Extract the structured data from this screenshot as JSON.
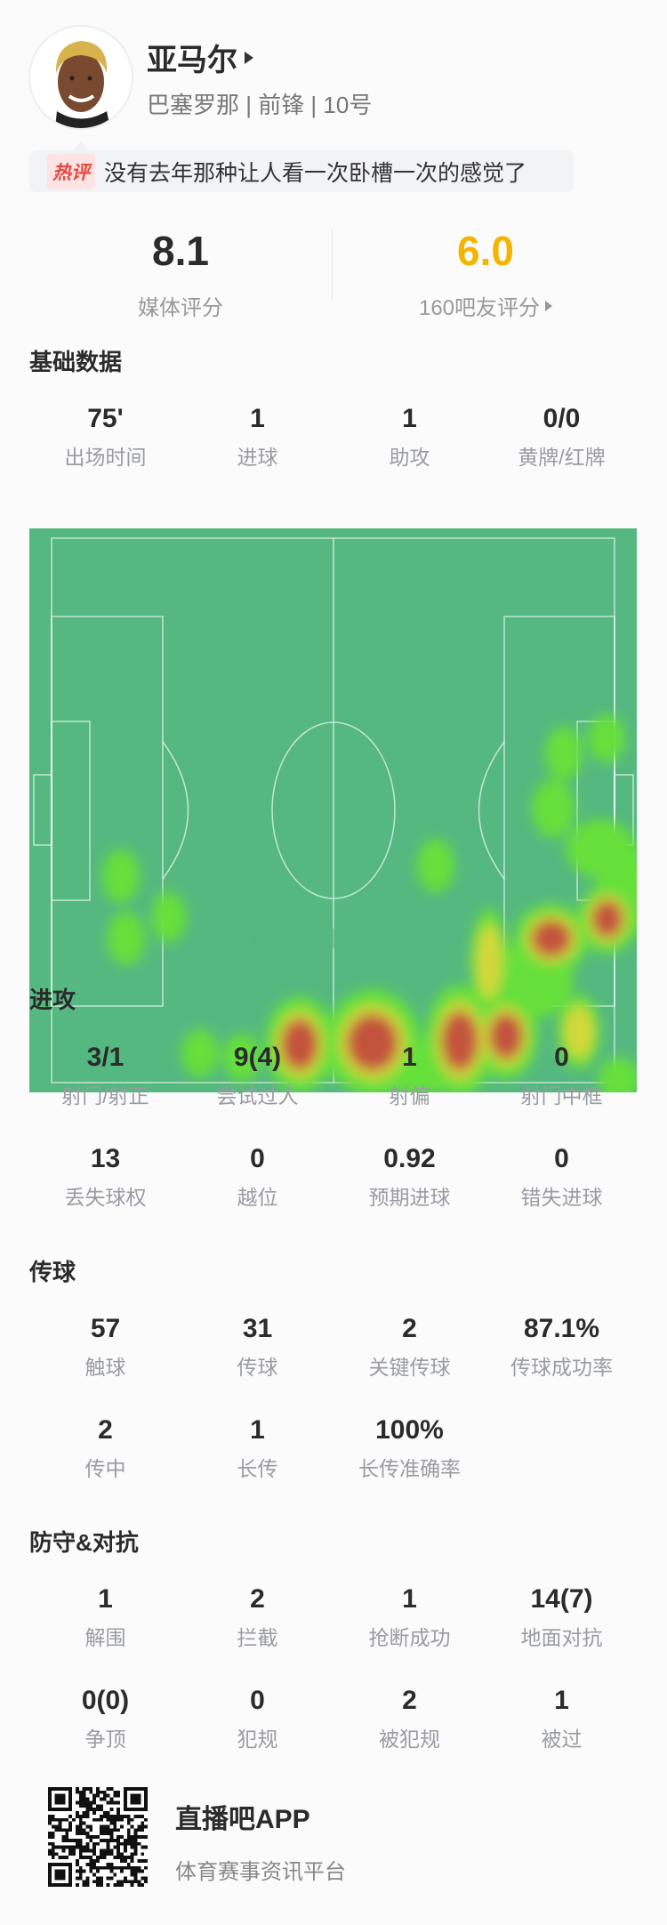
{
  "player": {
    "name": "亚马尔",
    "subtitle": "巴塞罗那 | 前锋 | 10号",
    "hot_comment": {
      "badge": "热评",
      "text": "没有去年那种让人看一次卧槽一次的感觉了"
    }
  },
  "ratings": {
    "media": {
      "value": "8.1",
      "label": "媒体评分"
    },
    "fans": {
      "value": "6.0",
      "label": "160吧友评分",
      "color": "#f5b400"
    }
  },
  "basic": {
    "title": "基础数据",
    "stats": [
      {
        "value": "75'",
        "label": "出场时间"
      },
      {
        "value": "1",
        "label": "进球"
      },
      {
        "value": "1",
        "label": "助攻"
      },
      {
        "value": "0/0",
        "label": "黄牌/红牌"
      }
    ]
  },
  "heatmap": {
    "pitch_color": "#55b880",
    "direction": "attacking-right"
  },
  "attack": {
    "title": "进攻",
    "stats": [
      {
        "value": "3/1",
        "label": "射门/射正"
      },
      {
        "value": "9(4)",
        "label": "尝试过人"
      },
      {
        "value": "1",
        "label": "射偏"
      },
      {
        "value": "0",
        "label": "射门中框"
      },
      {
        "value": "13",
        "label": "丢失球权"
      },
      {
        "value": "0",
        "label": "越位"
      },
      {
        "value": "0.92",
        "label": "预期进球"
      },
      {
        "value": "0",
        "label": "错失进球"
      }
    ]
  },
  "passing": {
    "title": "传球",
    "stats": [
      {
        "value": "57",
        "label": "触球"
      },
      {
        "value": "31",
        "label": "传球"
      },
      {
        "value": "2",
        "label": "关键传球"
      },
      {
        "value": "87.1%",
        "label": "传球成功率"
      },
      {
        "value": "2",
        "label": "传中"
      },
      {
        "value": "1",
        "label": "长传"
      },
      {
        "value": "100%",
        "label": "长传准确率"
      }
    ]
  },
  "defense": {
    "title": "防守&对抗",
    "stats": [
      {
        "value": "1",
        "label": "解围"
      },
      {
        "value": "2",
        "label": "拦截"
      },
      {
        "value": "1",
        "label": "抢断成功"
      },
      {
        "value": "14(7)",
        "label": "地面对抗"
      },
      {
        "value": "0(0)",
        "label": "争顶"
      },
      {
        "value": "0",
        "label": "犯规"
      },
      {
        "value": "2",
        "label": "被犯规"
      },
      {
        "value": "1",
        "label": "被过"
      }
    ]
  },
  "footer": {
    "app_name": "直播吧APP",
    "tagline": "体育赛事资讯平台"
  }
}
